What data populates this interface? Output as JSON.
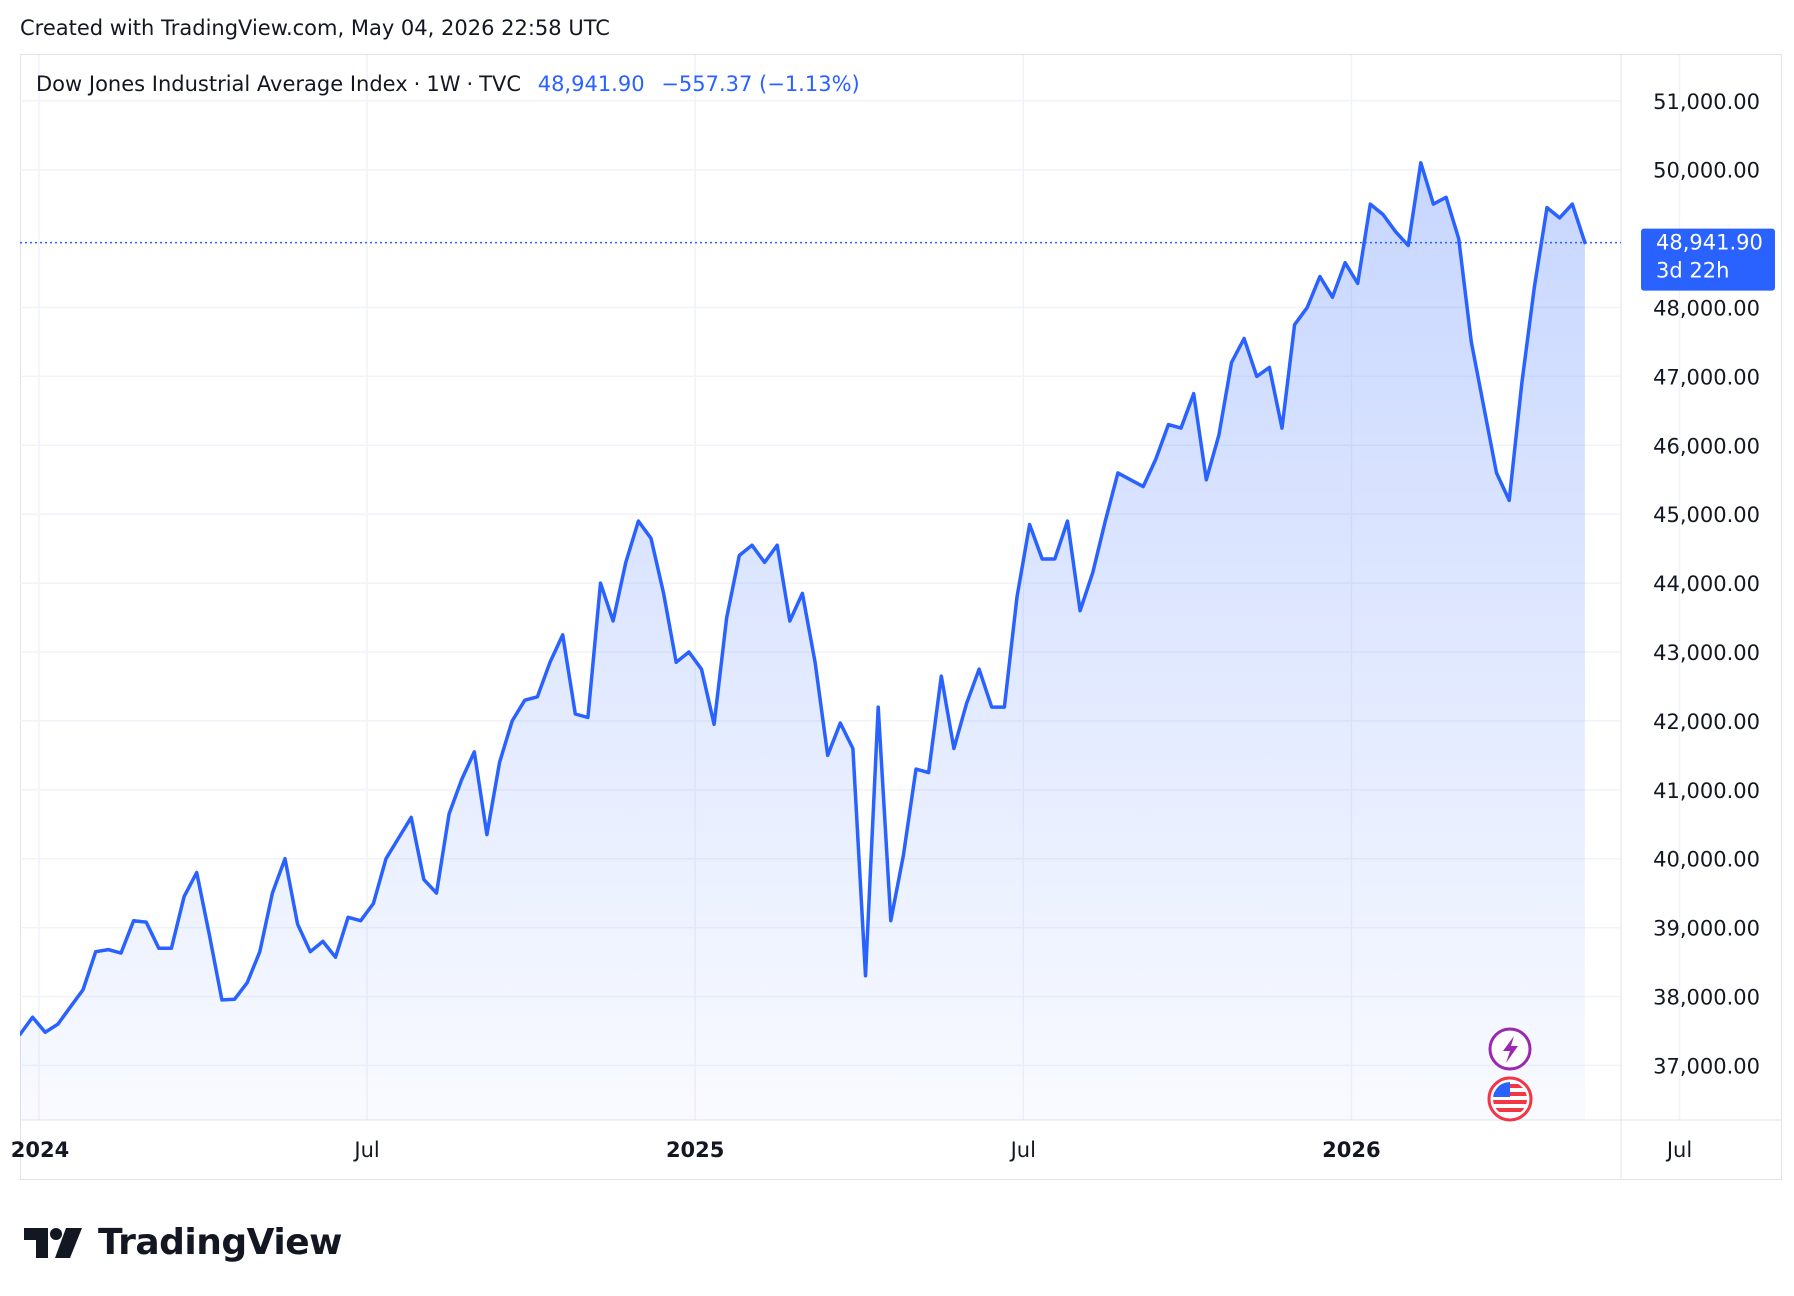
{
  "header": {
    "created": "Created with TradingView.com, May 04, 2026 22:58 UTC"
  },
  "legend": {
    "symbol": "Dow Jones Industrial Average Index",
    "interval": "1W",
    "exchange": "TVC",
    "separator": "·",
    "price": "48,941.90",
    "change": "−557.37 (−1.13%)"
  },
  "price_badge": {
    "price": "48,941.90",
    "countdown": "3d 22h",
    "color": "#2962ff"
  },
  "icons": [
    "lightning-icon",
    "us-flag-icon"
  ],
  "footer": {
    "brand": "TradingView"
  },
  "colors": {
    "line": "#2962ff",
    "grid": "#f0f3fa",
    "text": "#131722"
  },
  "chart_data": {
    "type": "area",
    "title": "",
    "xlabel": "",
    "ylabel": "",
    "ylim": [
      36000,
      51700
    ],
    "grid": true,
    "y_ticks": [
      "51,000.00",
      "50,000.00",
      "48,000.00",
      "47,000.00",
      "46,000.00",
      "45,000.00",
      "44,000.00",
      "43,000.00",
      "42,000.00",
      "41,000.00",
      "40,000.00",
      "39,000.00",
      "38,000.00",
      "37,000.00"
    ],
    "x_ticks": [
      {
        "label": "2024",
        "bold": true,
        "week": 1.5
      },
      {
        "label": "Jul",
        "bold": false,
        "week": 27.5
      },
      {
        "label": "2025",
        "bold": true,
        "week": 53.5
      },
      {
        "label": "Jul",
        "bold": false,
        "week": 79.5
      },
      {
        "label": "2026",
        "bold": true,
        "week": 105.5
      },
      {
        "label": "Jul",
        "bold": false,
        "week": 131.5
      }
    ],
    "series": [
      {
        "values": [
          37450,
          37700,
          37480,
          37600,
          37850,
          38100,
          38650,
          38680,
          38630,
          39100,
          39080,
          38700,
          38700,
          39450,
          39800,
          38900,
          37950,
          37960,
          38200,
          38650,
          39500,
          40000,
          39050,
          38650,
          38800,
          38570,
          39150,
          39100,
          39350,
          40000,
          40300,
          40600,
          39700,
          39500,
          40650,
          41150,
          41550,
          40350,
          41400,
          42000,
          42300,
          42350,
          42850,
          43250,
          42100,
          42050,
          44000,
          43450,
          44300,
          44900,
          44650,
          43850,
          42850,
          43000,
          42750,
          41950,
          43500,
          44400,
          44550,
          44300,
          44550,
          43450,
          43850,
          42850,
          41500,
          41970,
          41600,
          38300,
          42200,
          39100,
          40050,
          41300,
          41250,
          42650,
          41600,
          42250,
          42750,
          42200,
          42200,
          43800,
          44850,
          44350,
          44350,
          44900,
          43600,
          44150,
          44900,
          45600,
          45500,
          45400,
          45800,
          46300,
          46250,
          46750,
          45500,
          46150,
          47200,
          47550,
          47000,
          47130,
          46250,
          47750,
          48000,
          48450,
          48150,
          48650,
          48350,
          49500,
          49350,
          49100,
          48900,
          50100,
          49500,
          49600,
          49000,
          47500,
          46550,
          45600,
          45200,
          46900,
          48300,
          49450,
          49300,
          49500,
          48941.9
        ]
      }
    ]
  }
}
